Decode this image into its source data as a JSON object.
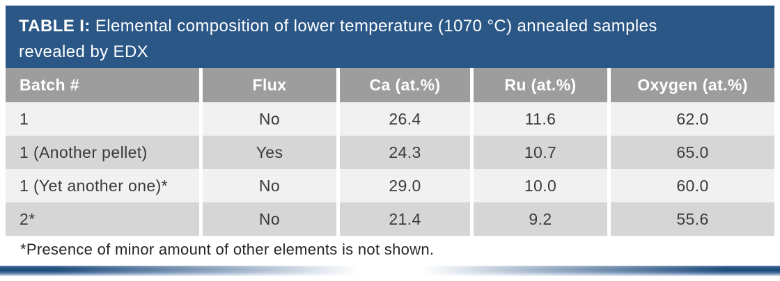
{
  "title": {
    "label": "TABLE I:",
    "line1": "Elemental composition of lower temperature (1070 °C) annealed samples",
    "line2": "revealed by EDX"
  },
  "table": {
    "columns": [
      "Batch #",
      "Flux",
      "Ca (at.%)",
      "Ru (at.%)",
      "Oxygen (at.%)"
    ],
    "rows": [
      [
        "1",
        "No",
        "26.4",
        "11.6",
        "62.0"
      ],
      [
        "1 (Another pellet)",
        "Yes",
        "24.3",
        "10.7",
        "65.0"
      ],
      [
        "1 (Yet another one)*",
        "No",
        "29.0",
        "10.0",
        "60.0"
      ],
      [
        "2*",
        "No",
        "21.4",
        "9.2",
        "55.6"
      ]
    ]
  },
  "footnote": "*Presence of minor amount of other elements is not shown.",
  "colors": {
    "header_blue": "#2b5787",
    "column_header_gray": "#9d9d9d",
    "row_light": "#f1f1f1",
    "row_dark": "#d6d6d6"
  }
}
